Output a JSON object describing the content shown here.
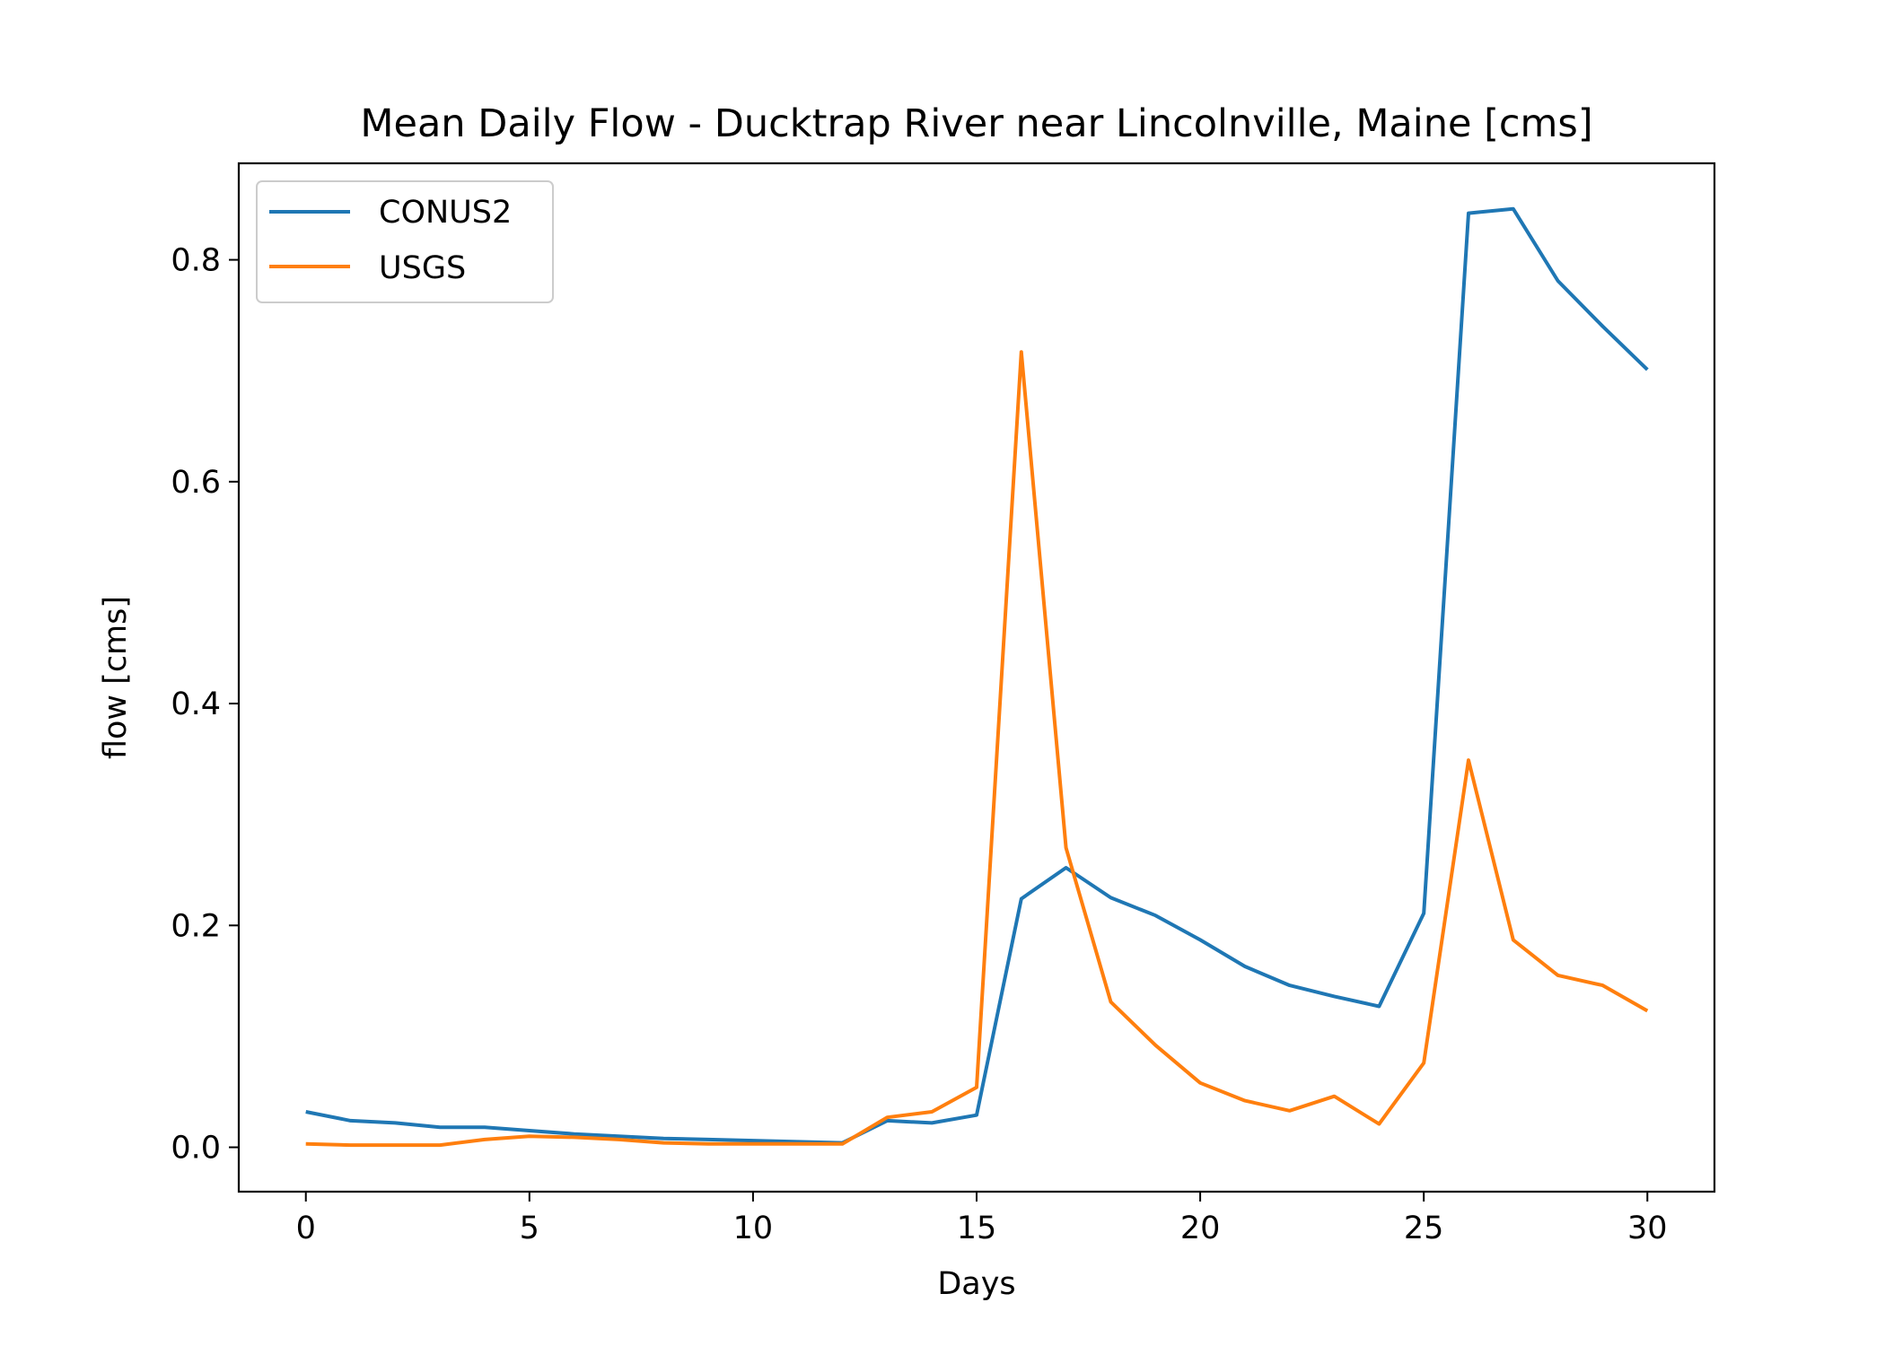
{
  "chart_data": {
    "type": "line",
    "title": "Mean Daily Flow - Ducktrap River near Lincolnville, Maine [cms]",
    "xlabel": "Days",
    "ylabel": "flow [cms]",
    "xlim": [
      -1.5,
      31.5
    ],
    "ylim": [
      -0.04,
      0.887
    ],
    "xticks": [
      0,
      5,
      10,
      15,
      20,
      25,
      30
    ],
    "xtick_labels": [
      "0",
      "5",
      "10",
      "15",
      "20",
      "25",
      "30"
    ],
    "yticks": [
      0.0,
      0.2,
      0.4,
      0.6,
      0.8
    ],
    "ytick_labels": [
      "0.0",
      "0.2",
      "0.4",
      "0.6",
      "0.8"
    ],
    "grid": false,
    "legend": "upper left",
    "x": [
      0,
      1,
      2,
      3,
      4,
      5,
      6,
      7,
      8,
      9,
      10,
      11,
      12,
      13,
      14,
      15,
      16,
      17,
      18,
      19,
      20,
      21,
      22,
      23,
      24,
      25,
      26,
      27,
      28,
      29,
      30
    ],
    "series": [
      {
        "name": "CONUS2",
        "color": "#1f77b4",
        "values": [
          0.032,
          0.024,
          0.022,
          0.018,
          0.018,
          0.015,
          0.012,
          0.01,
          0.008,
          0.007,
          0.006,
          0.005,
          0.004,
          0.024,
          0.022,
          0.029,
          0.224,
          0.252,
          0.225,
          0.209,
          0.187,
          0.163,
          0.146,
          0.136,
          0.127,
          0.211,
          0.842,
          0.846,
          0.781,
          0.74,
          0.701
        ]
      },
      {
        "name": "USGS",
        "color": "#ff7f0e",
        "values": [
          0.003,
          0.002,
          0.002,
          0.002,
          0.007,
          0.01,
          0.009,
          0.007,
          0.004,
          0.003,
          0.003,
          0.003,
          0.003,
          0.027,
          0.032,
          0.054,
          0.717,
          0.27,
          0.131,
          0.092,
          0.058,
          0.042,
          0.033,
          0.046,
          0.021,
          0.076,
          0.349,
          0.187,
          0.155,
          0.146,
          0.123
        ]
      }
    ]
  }
}
